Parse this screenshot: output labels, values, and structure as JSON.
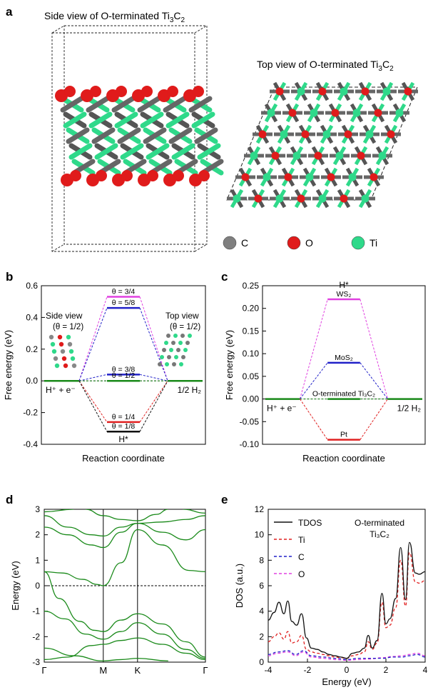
{
  "panels": {
    "a": {
      "label": "a",
      "side_title": "Side view of O-terminated Ti",
      "side_title_sub": "3",
      "side_title_mid": "C",
      "side_title_sub2": "2",
      "top_title": "Top view of O-terminated Ti",
      "top_title_sub": "3",
      "top_title_mid": "C",
      "top_title_sub2": "2",
      "legend": [
        {
          "label": "C",
          "color": "#7f7f7f"
        },
        {
          "label": "O",
          "color": "#e01b1b"
        },
        {
          "label": "Ti",
          "color": "#2fd98a"
        }
      ]
    },
    "b": {
      "label": "b"
    },
    "c": {
      "label": "c"
    },
    "d": {
      "label": "d"
    },
    "e": {
      "label": "e"
    }
  },
  "chart_data": [
    {
      "id": "b",
      "type": "line",
      "xlabel": "Reaction coordinate",
      "ylabel": "Free energy (eV)",
      "ylim": [
        -0.4,
        0.6
      ],
      "yticks": [
        "-0.4",
        "-0.2",
        "0.0",
        "0.2",
        "0.4",
        "0.6"
      ],
      "left_state_label": "H⁺ + e⁻",
      "right_state_label": "1/2 H₂",
      "intermediate_label": "H*",
      "inset_left": {
        "title": "Side view",
        "subtitle": "(θ = 1/2)"
      },
      "inset_right": {
        "title": "Top view",
        "subtitle": "(θ = 1/2)"
      },
      "series": [
        {
          "label": "θ = 3/4",
          "value": 0.53,
          "color": "#e040e0"
        },
        {
          "label": "θ = 5/8",
          "value": 0.46,
          "color": "#2020c8"
        },
        {
          "label": "θ = 3/8",
          "value": 0.04,
          "color": "#2020c8"
        },
        {
          "label": "θ = 1/2",
          "value": 0.0,
          "color": "#1a8a1a"
        },
        {
          "label": "θ = 1/4",
          "value": -0.26,
          "color": "#e02020"
        },
        {
          "label": "θ = 1/8",
          "value": -0.32,
          "color": "#111111"
        }
      ]
    },
    {
      "id": "c",
      "type": "line",
      "xlabel": "Reaction coordinate",
      "ylabel": "Free energy (eV)",
      "ylim": [
        -0.1,
        0.25
      ],
      "yticks": [
        "-0.10",
        "-0.05",
        "0.00",
        "0.05",
        "0.10",
        "0.15",
        "0.20",
        "0.25"
      ],
      "left_state_label": "H⁺ + e⁻",
      "right_state_label": "1/2 H₂",
      "intermediate_label": "H*",
      "series": [
        {
          "label": "WS₂",
          "value": 0.22,
          "color": "#e040e0"
        },
        {
          "label": "MoS₂",
          "value": 0.08,
          "color": "#2020c8"
        },
        {
          "label": "O-terminated Ti₃C₂",
          "value": 0.0,
          "color": "#1a8a1a"
        },
        {
          "label": "Pt",
          "value": -0.09,
          "color": "#e02020"
        }
      ]
    },
    {
      "id": "d",
      "type": "line",
      "ylabel": "Energy (eV)",
      "ylim": [
        -3,
        3
      ],
      "yticks": [
        "-3",
        "-2",
        "-1",
        "0",
        "1",
        "2",
        "3"
      ],
      "xtick_labels": [
        "Γ",
        "M",
        "K",
        "Γ"
      ],
      "k_positions": [
        0,
        1,
        1.58,
        2.73
      ],
      "bands": [
        [
          [
            0,
            0.55
          ],
          [
            0.25,
            -0.5
          ],
          [
            0.6,
            -1.4
          ],
          [
            0.85,
            -1.75
          ],
          [
            1,
            -1.8
          ],
          [
            1.3,
            -1.35
          ],
          [
            1.58,
            -1.1
          ],
          [
            2.0,
            -1.5
          ],
          [
            2.4,
            -2.2
          ],
          [
            2.73,
            -2.8
          ]
        ],
        [
          [
            0,
            0.55
          ],
          [
            0.3,
            0.5
          ],
          [
            0.65,
            0.25
          ],
          [
            0.9,
            0.05
          ],
          [
            1,
            0.0
          ],
          [
            1.3,
            0.9
          ],
          [
            1.58,
            2.2
          ],
          [
            2.0,
            1.6
          ],
          [
            2.45,
            0.6
          ],
          [
            2.73,
            0.55
          ]
        ],
        [
          [
            0,
            2.3
          ],
          [
            0.4,
            2.0
          ],
          [
            0.8,
            1.6
          ],
          [
            1,
            1.5
          ],
          [
            1.3,
            2.1
          ],
          [
            1.58,
            2.45
          ],
          [
            2.0,
            2.1
          ],
          [
            2.4,
            1.8
          ],
          [
            2.73,
            2.2
          ]
        ],
        [
          [
            0,
            2.75
          ],
          [
            0.4,
            2.3
          ],
          [
            0.8,
            2.0
          ],
          [
            1,
            1.95
          ],
          [
            1.3,
            2.3
          ],
          [
            1.58,
            2.45
          ],
          [
            2.0,
            2.5
          ],
          [
            2.4,
            2.6
          ],
          [
            2.73,
            2.75
          ]
        ],
        [
          [
            0,
            2.9
          ],
          [
            0.5,
            3.0
          ]
        ],
        [
          [
            0.7,
            3.0
          ],
          [
            1,
            2.75
          ],
          [
            1.3,
            2.6
          ],
          [
            1.58,
            2.55
          ],
          [
            1.9,
            2.8
          ],
          [
            2.1,
            3.0
          ]
        ],
        [
          [
            0,
            -1.0
          ],
          [
            0.35,
            -1.3
          ],
          [
            0.7,
            -1.9
          ],
          [
            1,
            -2.1
          ],
          [
            1.3,
            -1.8
          ],
          [
            1.58,
            -1.45
          ],
          [
            2.0,
            -1.9
          ],
          [
            2.4,
            -2.5
          ],
          [
            2.73,
            -2.85
          ]
        ],
        [
          [
            0,
            -2.9
          ],
          [
            0.4,
            -2.8
          ],
          [
            0.8,
            -2.35
          ],
          [
            1,
            -2.3
          ],
          [
            1.3,
            -2.15
          ],
          [
            1.58,
            -2.05
          ],
          [
            2.0,
            -2.3
          ],
          [
            2.4,
            -2.65
          ],
          [
            2.73,
            -2.9
          ]
        ],
        [
          [
            0,
            -2.45
          ],
          [
            0.5,
            -2.75
          ],
          [
            1,
            -2.95
          ],
          [
            1.3,
            -2.9
          ],
          [
            1.58,
            -2.85
          ],
          [
            2.1,
            -2.95
          ]
        ],
        [
          [
            2.35,
            3.0
          ],
          [
            2.73,
            2.85
          ]
        ]
      ]
    },
    {
      "id": "e",
      "type": "line",
      "xlabel": "Energy (eV)",
      "ylabel": "DOS (a.u.)",
      "xlim": [
        -4,
        4
      ],
      "ylim": [
        0,
        12
      ],
      "xticks": [
        "-4",
        "-2",
        "0",
        "2",
        "4"
      ],
      "yticks": [
        "0",
        "2",
        "4",
        "6",
        "8",
        "10",
        "12"
      ],
      "annotation_line1": "O-terminated",
      "annotation_line2": "Ti₃C₂",
      "series": [
        {
          "name": "TDOS",
          "color": "#111111",
          "dash": "",
          "x": [
            -4,
            -3.7,
            -3.45,
            -3.2,
            -3.0,
            -2.8,
            -2.55,
            -2.3,
            -2.05,
            -1.8,
            -1.5,
            -1.2,
            -0.9,
            -0.6,
            -0.3,
            0,
            0.3,
            0.6,
            0.9,
            1.1,
            1.3,
            1.55,
            1.8,
            2.0,
            2.2,
            2.5,
            2.75,
            3.0,
            3.2,
            3.5,
            3.7,
            4.0
          ],
          "y": [
            3.3,
            3.9,
            4.7,
            3.8,
            4.8,
            3.2,
            2.9,
            3.8,
            1.9,
            1.1,
            1.0,
            0.8,
            0.6,
            0.5,
            0.4,
            0.3,
            0.7,
            0.8,
            1.1,
            2.1,
            1.1,
            1.7,
            5.4,
            3.0,
            3.4,
            5.0,
            9.0,
            4.9,
            9.4,
            7.0,
            6.9,
            7.1
          ]
        },
        {
          "name": "Ti",
          "color": "#e02020",
          "dash": "4,3",
          "x": [
            -4,
            -3.7,
            -3.45,
            -3.2,
            -3.0,
            -2.8,
            -2.55,
            -2.3,
            -2.05,
            -1.8,
            -1.5,
            -1.2,
            -0.9,
            -0.6,
            -0.3,
            0,
            0.3,
            0.6,
            0.9,
            1.1,
            1.3,
            1.55,
            1.8,
            2.0,
            2.2,
            2.5,
            2.75,
            3.0,
            3.2,
            3.5,
            3.7,
            4.0
          ],
          "y": [
            1.6,
            2.0,
            2.3,
            1.8,
            2.4,
            1.5,
            1.6,
            2.1,
            1.0,
            0.8,
            0.7,
            0.6,
            0.5,
            0.4,
            0.35,
            0.3,
            0.5,
            0.6,
            0.8,
            1.6,
            1.0,
            1.5,
            4.7,
            2.7,
            2.9,
            4.3,
            8.0,
            4.4,
            8.6,
            6.3,
            6.2,
            6.4
          ]
        },
        {
          "name": "C",
          "color": "#2020c8",
          "dash": "4,3",
          "x": [
            -4,
            -3.5,
            -3.0,
            -2.6,
            -2.2,
            -1.8,
            -1.2,
            -0.6,
            0,
            0.6,
            1.2,
            1.8,
            2.4,
            2.8,
            3.2,
            3.6,
            4.0
          ],
          "y": [
            0.6,
            0.8,
            0.9,
            0.6,
            0.9,
            0.5,
            0.4,
            0.3,
            0.2,
            0.3,
            0.3,
            0.3,
            0.4,
            0.4,
            0.5,
            0.6,
            0.4
          ]
        },
        {
          "name": "O",
          "color": "#e040e0",
          "dash": "4,3",
          "x": [
            -4,
            -3.5,
            -3.0,
            -2.6,
            -2.2,
            -1.8,
            -1.2,
            -0.6,
            0,
            0.6,
            1.2,
            1.8,
            2.4,
            2.8,
            3.2,
            3.6,
            4.0
          ],
          "y": [
            0.5,
            0.7,
            0.8,
            0.5,
            0.8,
            0.4,
            0.3,
            0.2,
            0.15,
            0.2,
            0.25,
            0.35,
            0.45,
            0.5,
            0.6,
            0.7,
            0.5
          ]
        }
      ]
    }
  ]
}
